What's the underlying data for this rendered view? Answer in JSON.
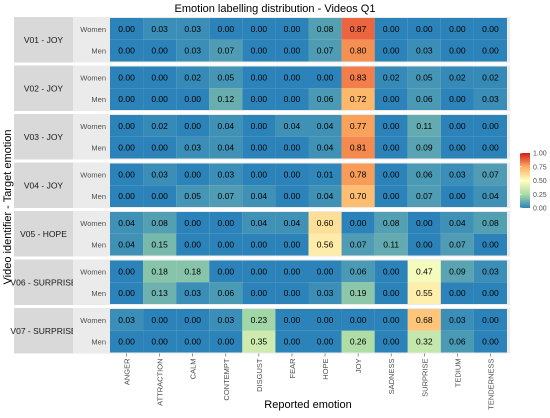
{
  "chart_data": {
    "type": "heatmap",
    "title": "Emotion labelling distribution - Videos Q1",
    "xlabel": "Reported emotion",
    "ylabel": "Video identifier - Target emotion",
    "x_categories": [
      "ANGER",
      "ATTRACTION",
      "CALM",
      "CONTEMPT",
      "DISGUST",
      "FEAR",
      "HOPE",
      "JOY",
      "SADNESS",
      "SURPRISE",
      "TEDIUM",
      "TENDERNESS"
    ],
    "row_labels": [
      "Women",
      "Men"
    ],
    "color_scale": {
      "range": [
        0,
        1
      ],
      "ticks": [
        "0.00",
        "0.25",
        "0.50",
        "0.75",
        "1.00"
      ],
      "stops": [
        "#2b83ba",
        "#abdda4",
        "#ffffbf",
        "#fdae61",
        "#d7191c"
      ]
    },
    "facets": [
      {
        "label": "V01 - JOY",
        "rows": [
          [
            "0.00",
            "0.03",
            "0.03",
            "0.00",
            "0.00",
            "0.00",
            "0.08",
            "0.87",
            "0.00",
            "0.00",
            "0.00",
            "0.00"
          ],
          [
            "0.00",
            "0.00",
            "0.03",
            "0.07",
            "0.00",
            "0.00",
            "0.07",
            "0.80",
            "0.00",
            "0.03",
            "0.00",
            "0.00"
          ]
        ]
      },
      {
        "label": "V02 - JOY",
        "rows": [
          [
            "0.00",
            "0.00",
            "0.02",
            "0.05",
            "0.00",
            "0.00",
            "0.00",
            "0.83",
            "0.02",
            "0.05",
            "0.02",
            "0.02"
          ],
          [
            "0.00",
            "0.00",
            "0.00",
            "0.12",
            "0.00",
            "0.00",
            "0.06",
            "0.72",
            "0.00",
            "0.06",
            "0.00",
            "0.03"
          ]
        ]
      },
      {
        "label": "V03 - JOY",
        "rows": [
          [
            "0.00",
            "0.02",
            "0.00",
            "0.04",
            "0.00",
            "0.04",
            "0.04",
            "0.77",
            "0.00",
            "0.11",
            "0.00",
            "0.00"
          ],
          [
            "0.00",
            "0.00",
            "0.03",
            "0.04",
            "0.00",
            "0.00",
            "0.04",
            "0.81",
            "0.00",
            "0.09",
            "0.00",
            "0.00"
          ]
        ]
      },
      {
        "label": "V04 - JOY",
        "rows": [
          [
            "0.00",
            "0.03",
            "0.00",
            "0.03",
            "0.00",
            "0.00",
            "0.01",
            "0.78",
            "0.00",
            "0.06",
            "0.03",
            "0.07"
          ],
          [
            "0.00",
            "0.00",
            "0.05",
            "0.07",
            "0.04",
            "0.00",
            "0.04",
            "0.70",
            "0.00",
            "0.07",
            "0.00",
            "0.04"
          ]
        ]
      },
      {
        "label": "V05 - HOPE",
        "rows": [
          [
            "0.04",
            "0.08",
            "0.00",
            "0.00",
            "0.04",
            "0.04",
            "0.60",
            "0.00",
            "0.08",
            "0.00",
            "0.04",
            "0.08"
          ],
          [
            "0.04",
            "0.15",
            "0.00",
            "0.00",
            "0.00",
            "0.00",
            "0.56",
            "0.07",
            "0.11",
            "0.00",
            "0.07",
            "0.00"
          ]
        ]
      },
      {
        "label": "V06 - SURPRISE",
        "rows": [
          [
            "0.00",
            "0.18",
            "0.18",
            "0.00",
            "0.00",
            "0.00",
            "0.00",
            "0.06",
            "0.00",
            "0.47",
            "0.09",
            "0.03"
          ],
          [
            "0.00",
            "0.13",
            "0.03",
            "0.06",
            "0.00",
            "0.00",
            "0.03",
            "0.19",
            "0.00",
            "0.55",
            "0.00",
            "0.00"
          ]
        ]
      },
      {
        "label": "V07 - SURPRISE",
        "rows": [
          [
            "0.03",
            "0.00",
            "0.00",
            "0.03",
            "0.23",
            "0.00",
            "0.00",
            "0.00",
            "0.00",
            "0.68",
            "0.03",
            "0.00"
          ],
          [
            "0.00",
            "0.00",
            "0.00",
            "0.00",
            "0.35",
            "0.00",
            "0.00",
            "0.26",
            "0.00",
            "0.32",
            "0.06",
            "0.00"
          ]
        ]
      }
    ]
  }
}
